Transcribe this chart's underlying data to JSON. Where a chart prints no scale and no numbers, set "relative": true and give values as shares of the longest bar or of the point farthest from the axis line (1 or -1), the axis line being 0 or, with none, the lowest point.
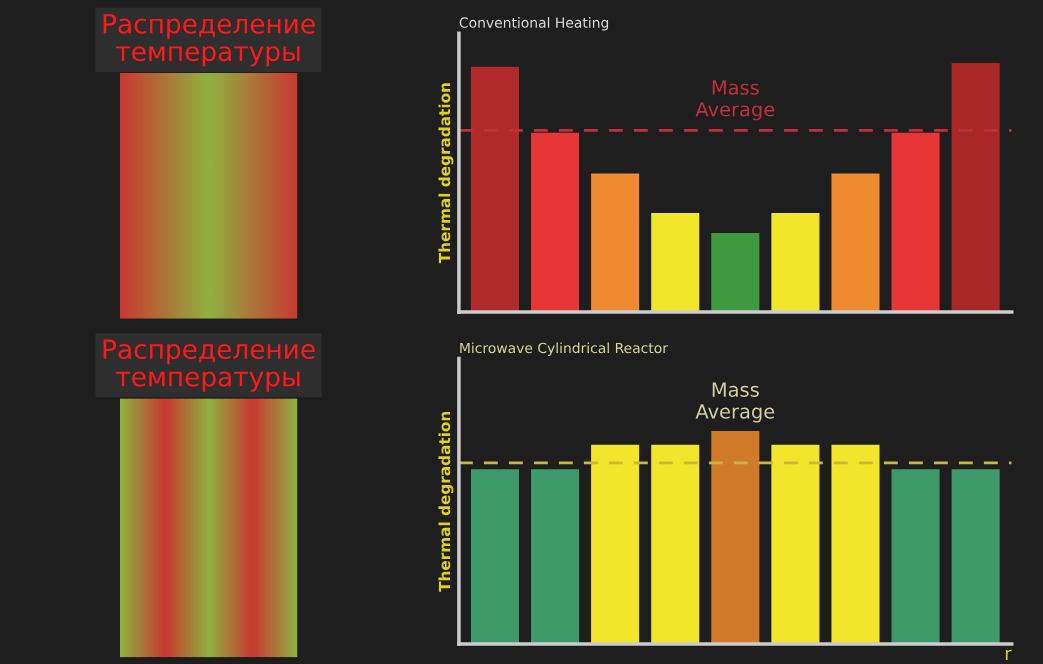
{
  "chart_data": [
    {
      "type": "bar",
      "title": "Conventional Heating",
      "ylabel": "Thermal degradation",
      "relative": true,
      "categories": [
        null,
        null,
        null,
        null,
        null,
        null,
        null,
        null,
        null
      ],
      "values": [
        0.985,
        0.72,
        0.557,
        0.398,
        0.318,
        0.398,
        0.557,
        0.72,
        1.0
      ],
      "colors": [
        "#b02a2a",
        "#e83535",
        "#f08a30",
        "#f2e62a",
        "#3f9a3f",
        "#f2e62a",
        "#f08a30",
        "#e83535",
        "#a82828"
      ],
      "ref_lines": [
        {
          "axis": "y",
          "value": 0.73,
          "label": "Mass\nAverage",
          "color": "#c0303a",
          "line_style": "dashed"
        }
      ],
      "annotations": [
        "Распределение\nтемпературы"
      ]
    },
    {
      "type": "bar",
      "title": "Microwave Cylindrical Reactor",
      "ylabel": "Thermal degradation",
      "xlabel": "r",
      "relative": true,
      "categories": [
        null,
        null,
        null,
        null,
        null,
        null,
        null,
        null,
        null
      ],
      "values": [
        0.82,
        0.82,
        0.935,
        0.935,
        1.0,
        0.935,
        0.935,
        0.82,
        0.82
      ],
      "colors": [
        "#3f9a6a",
        "#3f9a6a",
        "#f2e62a",
        "#f2e62a",
        "#d07a2a",
        "#f2e62a",
        "#f2e62a",
        "#3f9a6a",
        "#3f9a6a"
      ],
      "ref_lines": [
        {
          "axis": "y",
          "value": 0.85,
          "label": "Mass\nAverage",
          "color": "#c8b840",
          "line_style": "dashed"
        }
      ],
      "annotations": [
        "Распределение\nтемпературы"
      ]
    }
  ]
}
